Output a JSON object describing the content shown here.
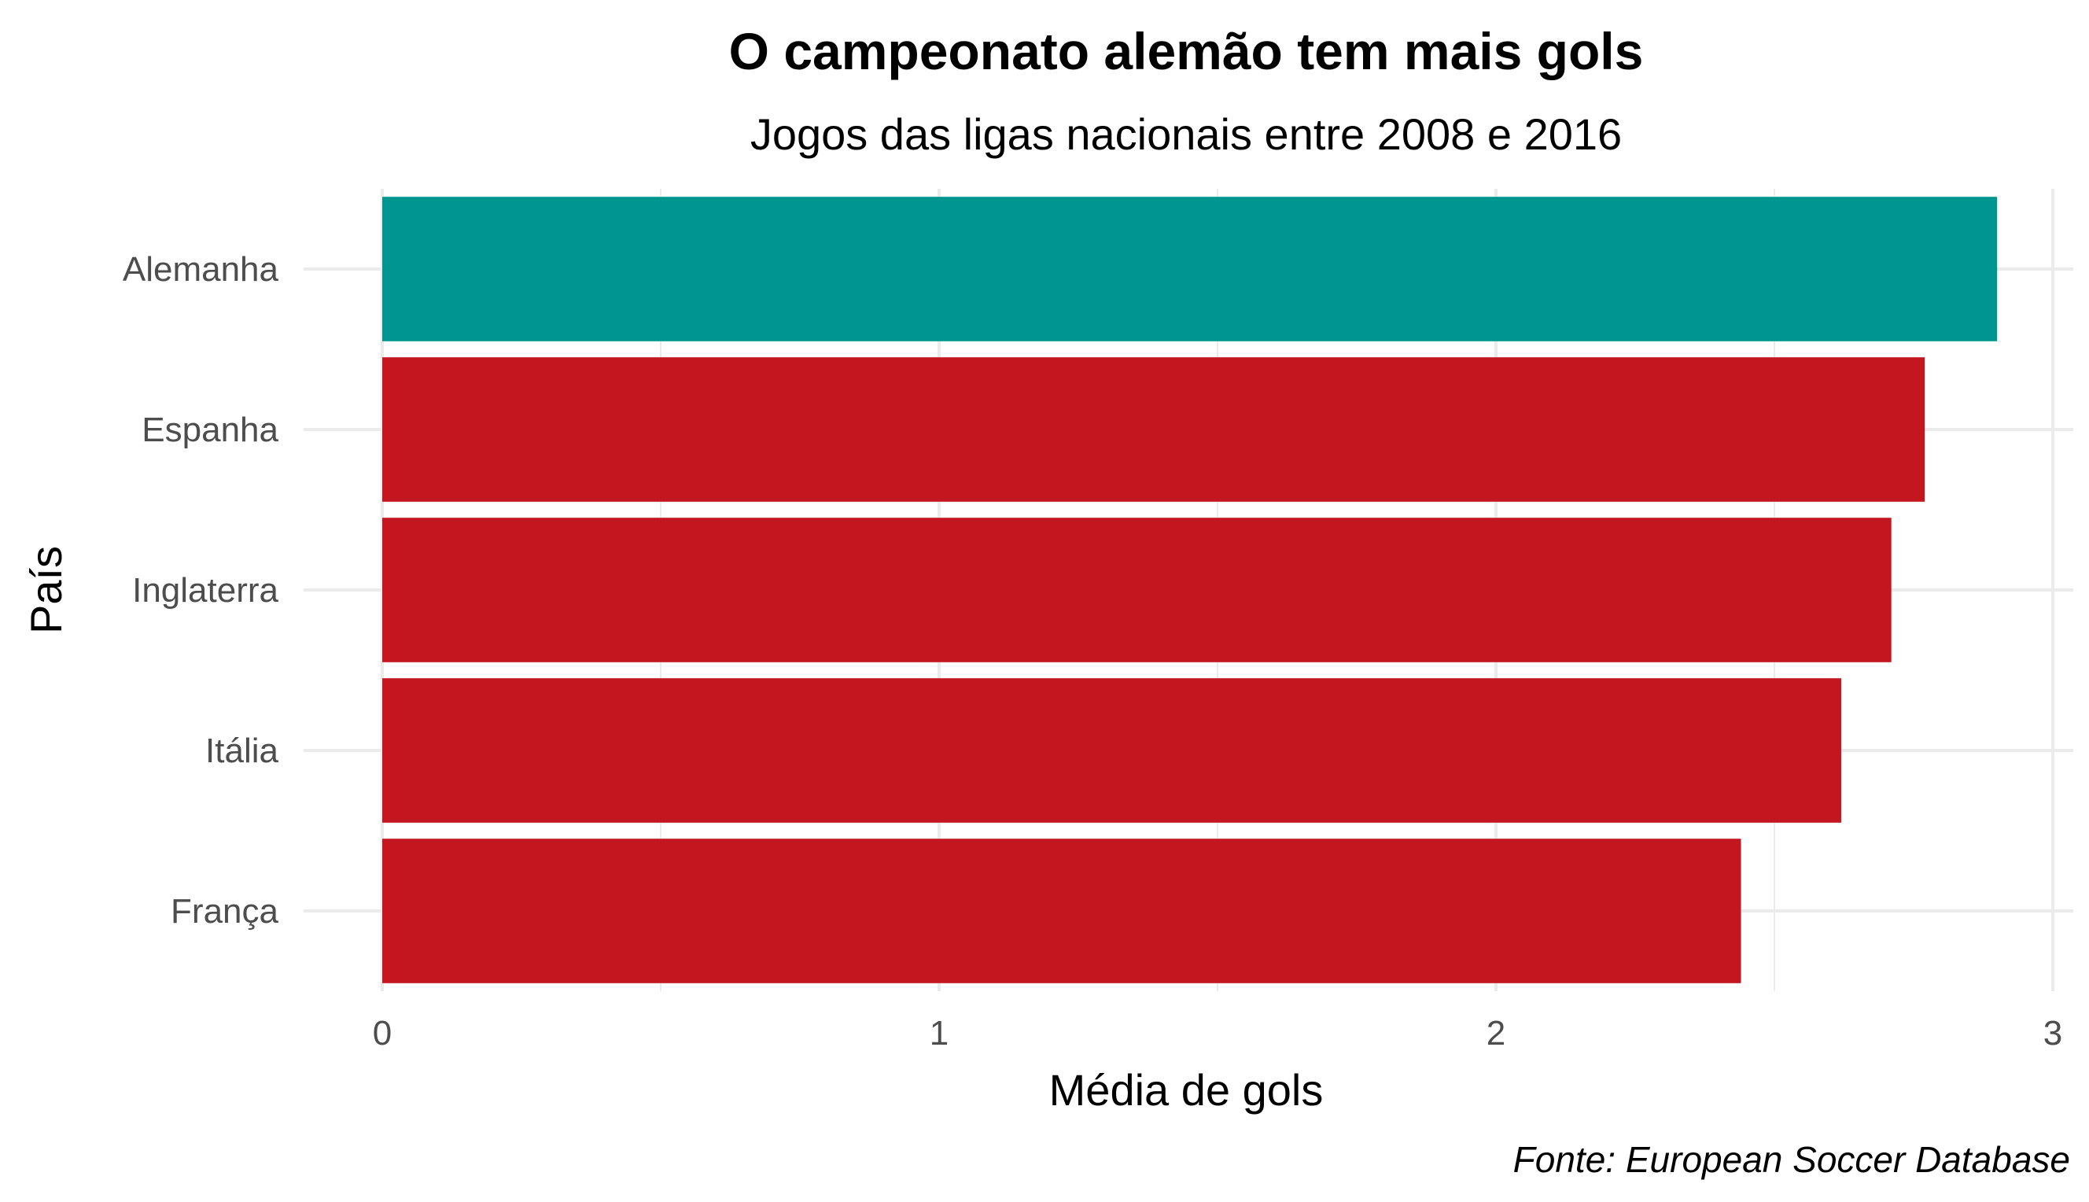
{
  "chart_data": {
    "type": "bar",
    "orientation": "horizontal",
    "title": "O campeonato alemão tem mais gols",
    "subtitle": "Jogos das ligas nacionais entre 2008 e 2016",
    "xlabel": "Média de gols",
    "ylabel": "País",
    "caption": "Fonte: European Soccer Database",
    "categories": [
      "Alemanha",
      "Espanha",
      "Inglaterra",
      "Itália",
      "França"
    ],
    "values": [
      2.9,
      2.77,
      2.71,
      2.62,
      2.44
    ],
    "colors": [
      "#00968f",
      "#c3161e",
      "#c3161e",
      "#c3161e",
      "#c3161e"
    ],
    "xlim": [
      0,
      3
    ],
    "xticks": [
      "0",
      "1",
      "2",
      "3"
    ],
    "grid": true,
    "legend": "none"
  }
}
